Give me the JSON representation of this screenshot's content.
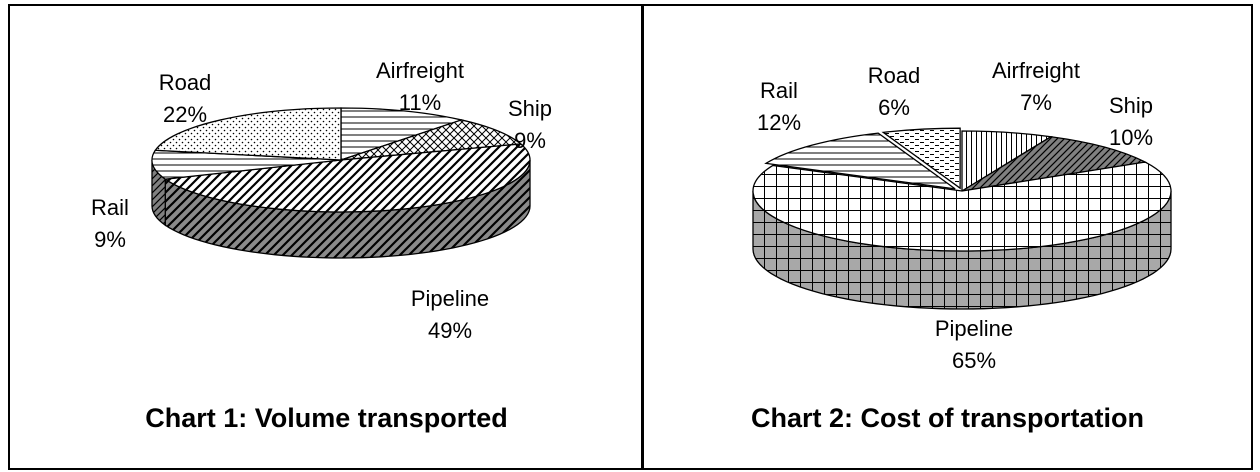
{
  "chart_data": [
    {
      "type": "pie",
      "title": "Chart 1: Volume transported",
      "style": "3D pie with pattern fills",
      "categories": [
        "Airfreight",
        "Ship",
        "Pipeline",
        "Rail",
        "Road"
      ],
      "values": [
        11,
        9,
        49,
        9,
        22
      ],
      "labels": [
        {
          "name": "Airfreight",
          "percent": "11%"
        },
        {
          "name": "Ship",
          "percent": "9%"
        },
        {
          "name": "Pipeline",
          "percent": "49%"
        },
        {
          "name": "Rail",
          "percent": "9%"
        },
        {
          "name": "Road",
          "percent": "22%"
        }
      ]
    },
    {
      "type": "pie",
      "title": "Chart 2: Cost of transportation",
      "style": "3D pie with pattern fills",
      "categories": [
        "Airfreight",
        "Ship",
        "Pipeline",
        "Rail",
        "Road"
      ],
      "values": [
        7,
        10,
        65,
        12,
        6
      ],
      "labels": [
        {
          "name": "Airfreight",
          "percent": "7%"
        },
        {
          "name": "Ship",
          "percent": "10%"
        },
        {
          "name": "Pipeline",
          "percent": "65%"
        },
        {
          "name": "Rail",
          "percent": "12%"
        },
        {
          "name": "Road",
          "percent": "6%"
        }
      ]
    }
  ]
}
